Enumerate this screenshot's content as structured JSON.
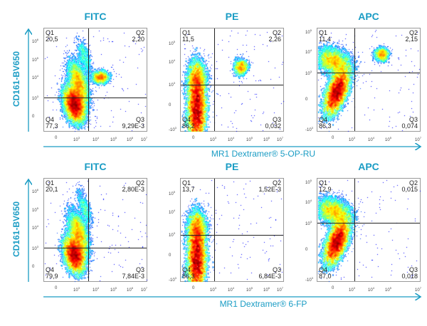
{
  "chart_data": {
    "type": "scatter",
    "subtype": "flow-cytometry density dot plots with quadrant gates",
    "colors": {
      "accent": "#1a9cc4",
      "gate_line": "#222222"
    },
    "colormap": "jet density",
    "rows": [
      {
        "xlabel": "MR1 Dextramer® 5-OP-RU",
        "ylabel": "CD161-BV650",
        "panels": [
          {
            "title": "FITC",
            "xticks": [
              "0",
              "10^3",
              "10^4",
              "10^5",
              "10^6",
              "10^7"
            ],
            "yticks": [
              "0",
              "10^3",
              "10^4",
              "10^5",
              "10^6"
            ],
            "quadrants": {
              "Q1": "20,5",
              "Q2": "2,20",
              "Q3": "9,29E-3",
              "Q4": "77,3"
            }
          },
          {
            "title": "PE",
            "xticks": [
              "0",
              "10^3",
              "10^4",
              "10^5",
              "10^6",
              "10^7"
            ],
            "yticks": [
              "-10^3",
              "0",
              "10^3",
              "10^4",
              "10^5"
            ],
            "quadrants": {
              "Q1": "11,5",
              "Q2": "2,26",
              "Q3": "0,032",
              "Q4": "86,2"
            }
          },
          {
            "title": "APC",
            "xticks": [
              "0",
              "10^3",
              "10^4",
              "10^5",
              "10^7"
            ],
            "yticks": [
              "-10^3",
              "0",
              "10^3",
              "10^4",
              "10^5"
            ],
            "quadrants": {
              "Q1": "11,4",
              "Q2": "2,15",
              "Q3": "0,074",
              "Q4": "86,3"
            }
          }
        ]
      },
      {
        "xlabel": "MR1 Dextramer® 6-FP",
        "ylabel": "CD161-BV650",
        "panels": [
          {
            "title": "FITC",
            "xticks": [
              "0",
              "10^3",
              "10^4",
              "10^5",
              "10^6",
              "10^7"
            ],
            "yticks": [
              "0",
              "10^3",
              "10^4",
              "10^5",
              "10^6"
            ],
            "quadrants": {
              "Q1": "20,1",
              "Q2": "2,80E-3",
              "Q3": "7,84E-3",
              "Q4": "79,9"
            }
          },
          {
            "title": "PE",
            "xticks": [
              "0",
              "10^3",
              "10^4",
              "10^5",
              "10^6",
              "10^7"
            ],
            "yticks": [
              "-10^3",
              "0",
              "10^3",
              "10^4",
              "10^5"
            ],
            "quadrants": {
              "Q1": "13,7",
              "Q2": "1,52E-3",
              "Q3": "6,84E-3",
              "Q4": "86,3"
            }
          },
          {
            "title": "APC",
            "xticks": [
              "0",
              "10^3",
              "10^4",
              "10^5",
              "10^7"
            ],
            "yticks": [
              "-10^3",
              "0",
              "10^3",
              "10^4",
              "10^5"
            ],
            "quadrants": {
              "Q1": "12,9",
              "Q2": "0,015",
              "Q3": "0,018",
              "Q4": "87,0"
            }
          }
        ]
      }
    ]
  }
}
